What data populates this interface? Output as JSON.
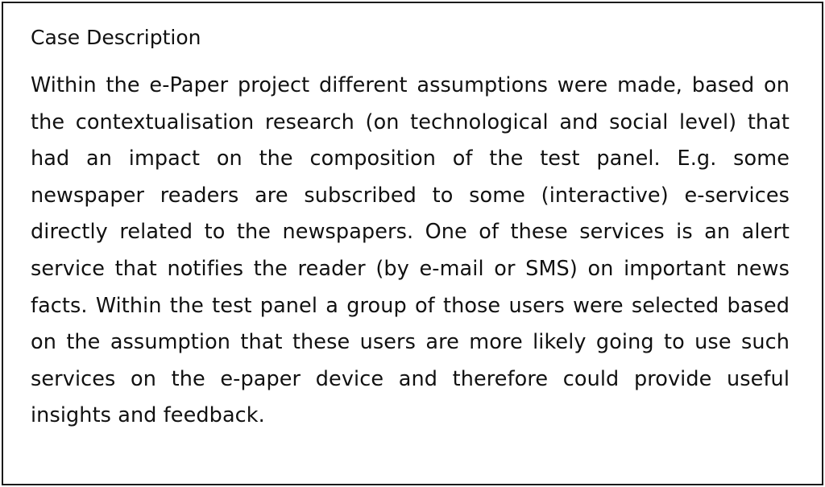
{
  "case": {
    "title": "Case Description",
    "body": "Within the e-Paper project different assumptions were made, based on the contextualisation research (on technological and social level) that had an impact on the composition of the test panel. E.g. some newspaper readers are subscribed to some (interactive) e-services directly related to the newspapers. One of these services is an alert service that notifies the reader (by e-mail or SMS) on important news facts. Within the test panel a group of those users were selected based on the assumption that these users are more likely going to use such services on the e-paper device and therefore could provide useful insights and feedback."
  }
}
